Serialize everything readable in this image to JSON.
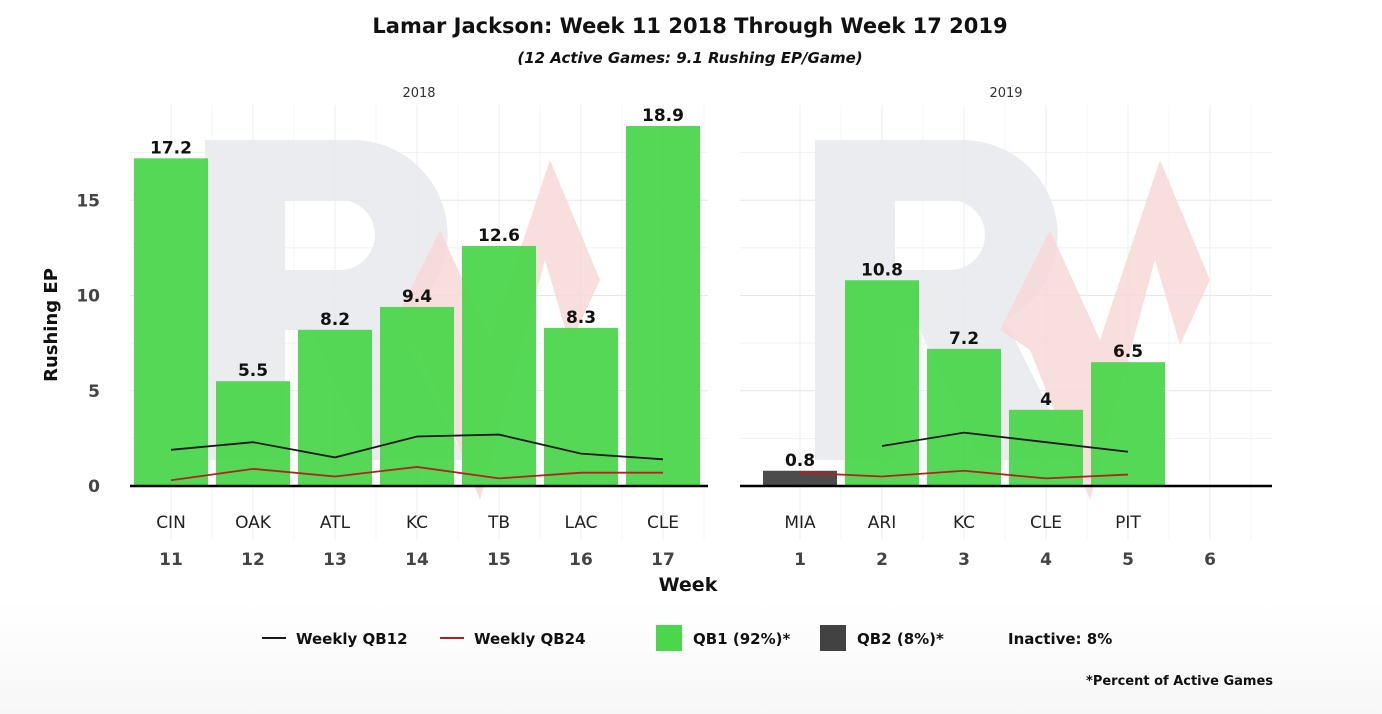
{
  "chart_data": {
    "type": "bar",
    "title": "Lamar Jackson: Week 11 2018 Through Week 17 2019",
    "subtitle": "(12 Active Games: 9.1 Rushing EP/Game)",
    "xlabel": "Week",
    "ylabel": "Rushing EP",
    "ylim": [
      0,
      19.5
    ],
    "yticks": [
      0,
      5,
      10,
      15
    ],
    "grid": true,
    "legend_position": "bottom",
    "footnote": "*Percent of Active Games",
    "colors": {
      "qb1": "#4cd64c",
      "qb2": "#424242",
      "qb12_line": "#1a1a1a",
      "qb24_line": "#b22222",
      "watermark_gray": "#e9eaee",
      "watermark_red": "#f8d8d8"
    },
    "legend": [
      {
        "key": "qb12",
        "kind": "line",
        "label": "Weekly QB12"
      },
      {
        "key": "qb24",
        "kind": "line",
        "label": "Weekly QB24"
      },
      {
        "key": "qb1",
        "kind": "box",
        "label": "QB1 (92%)*"
      },
      {
        "key": "qb2",
        "kind": "box",
        "label": "QB2 (8%)*"
      },
      {
        "key": "inactive",
        "kind": "text",
        "label": "Inactive: 8%"
      }
    ],
    "panels": [
      {
        "label": "2018",
        "weeks": [
          "11",
          "12",
          "13",
          "14",
          "15",
          "16",
          "17"
        ],
        "opponents": [
          "CIN",
          "OAK",
          "ATL",
          "KC",
          "TB",
          "LAC",
          "CLE"
        ],
        "values": [
          17.2,
          5.5,
          8.2,
          9.4,
          12.6,
          8.3,
          18.9
        ],
        "labels": [
          "17.2",
          "5.5",
          "8.2",
          "9.4",
          "12.6",
          "8.3",
          "18.9"
        ],
        "tiers": [
          "qb1",
          "qb1",
          "qb1",
          "qb1",
          "qb1",
          "qb1",
          "qb1"
        ],
        "qb12": [
          1.9,
          2.3,
          1.5,
          2.6,
          2.7,
          1.7,
          1.4
        ],
        "qb24": [
          0.3,
          0.9,
          0.5,
          1.0,
          0.4,
          0.7,
          0.7
        ]
      },
      {
        "label": "2019",
        "weeks": [
          "1",
          "2",
          "3",
          "4",
          "5",
          "6"
        ],
        "opponents": [
          "MIA",
          "ARI",
          "KC",
          "CLE",
          "PIT",
          ""
        ],
        "values": [
          0.8,
          10.8,
          7.2,
          4,
          6.5,
          null
        ],
        "labels": [
          "0.8",
          "10.8",
          "7.2",
          "4",
          "6.5",
          ""
        ],
        "tiers": [
          "qb2",
          "qb1",
          "qb1",
          "qb1",
          "qb1",
          ""
        ],
        "qb12": [
          null,
          2.1,
          2.8,
          2.3,
          1.8,
          null
        ],
        "qb24": [
          0.7,
          0.5,
          0.8,
          0.4,
          0.6,
          null
        ]
      }
    ]
  }
}
